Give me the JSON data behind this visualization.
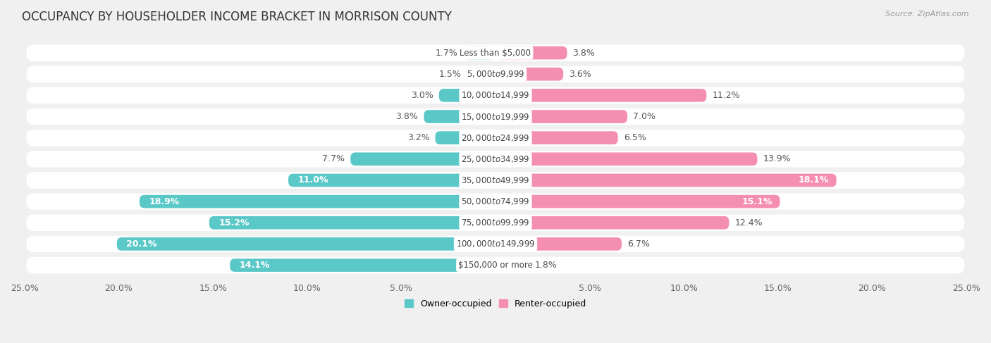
{
  "title": "OCCUPANCY BY HOUSEHOLDER INCOME BRACKET IN MORRISON COUNTY",
  "source": "Source: ZipAtlas.com",
  "categories": [
    "Less than $5,000",
    "$5,000 to $9,999",
    "$10,000 to $14,999",
    "$15,000 to $19,999",
    "$20,000 to $24,999",
    "$25,000 to $34,999",
    "$35,000 to $49,999",
    "$50,000 to $74,999",
    "$75,000 to $99,999",
    "$100,000 to $149,999",
    "$150,000 or more"
  ],
  "owner_values": [
    1.7,
    1.5,
    3.0,
    3.8,
    3.2,
    7.7,
    11.0,
    18.9,
    15.2,
    20.1,
    14.1
  ],
  "renter_values": [
    3.8,
    3.6,
    11.2,
    7.0,
    6.5,
    13.9,
    18.1,
    15.1,
    12.4,
    6.7,
    1.8
  ],
  "owner_color": "#5BC8C8",
  "renter_color": "#F48FB1",
  "background_color": "#f0f0f0",
  "bar_background_color": "#ffffff",
  "row_bg_color": "#e8e8e8",
  "xlim": 25.0,
  "bar_height": 0.62,
  "title_fontsize": 12,
  "label_fontsize": 9,
  "tick_fontsize": 9,
  "category_fontsize": 8.5,
  "owner_inside_threshold": 10.0,
  "renter_inside_threshold": 14.0
}
